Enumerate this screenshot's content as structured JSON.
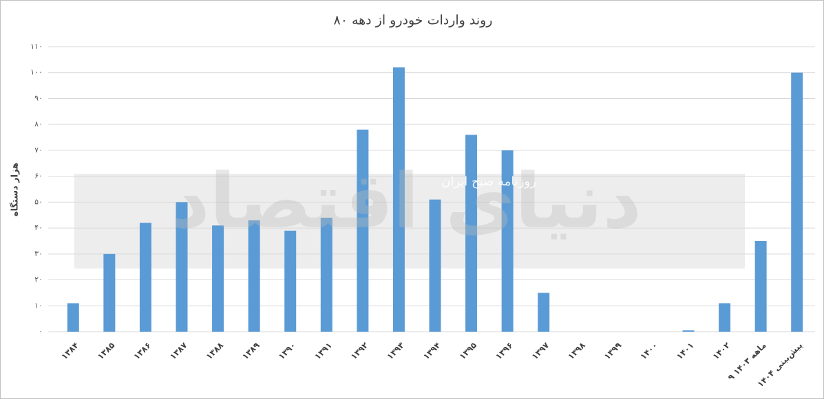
{
  "chart_data": {
    "type": "bar",
    "title": "روند واردات خودرو از دهه ۸۰",
    "y_label": "هزار دستگاه",
    "categories": [
      "۱۳۸۴",
      "۱۳۸۵",
      "۱۳۸۶",
      "۱۳۸۷",
      "۱۳۸۸",
      "۱۳۸۹",
      "۱۳۹۰",
      "۱۳۹۱",
      "۱۳۹۲",
      "۱۳۹۳",
      "۱۳۹۴",
      "۱۳۹۵",
      "۱۳۹۶",
      "۱۳۹۷",
      "۱۳۹۸",
      "۱۳۹۹",
      "۱۴۰۰",
      "۱۴۰۱",
      "۱۴۰۲",
      "۹ ماهه ۱۴۰۳",
      "پیش‌بینی ۱۴۰۴"
    ],
    "values": [
      11,
      30,
      42,
      50,
      41,
      43,
      39,
      44,
      78,
      102,
      51,
      76,
      70,
      15,
      0,
      0,
      0,
      0.5,
      11,
      35,
      100
    ],
    "color": "#5b9bd5",
    "ylim": [
      0,
      110
    ],
    "yticks": [
      {
        "value": 0,
        "label": "۰"
      },
      {
        "value": 10,
        "label": "۱۰"
      },
      {
        "value": 20,
        "label": "۲۰"
      },
      {
        "value": 30,
        "label": "۳۰"
      },
      {
        "value": 40,
        "label": "۴۰"
      },
      {
        "value": 50,
        "label": "۵۰"
      },
      {
        "value": 60,
        "label": "۶۰"
      },
      {
        "value": 70,
        "label": "۷۰"
      },
      {
        "value": 80,
        "label": "۸۰"
      },
      {
        "value": 90,
        "label": "۹۰"
      },
      {
        "value": 100,
        "label": "۱۰۰"
      },
      {
        "value": 110,
        "label": "۱۱۰"
      }
    ],
    "grid": true,
    "watermark": [
      "دنیای اقتصاد",
      "روزنامه صبح ایران"
    ]
  }
}
